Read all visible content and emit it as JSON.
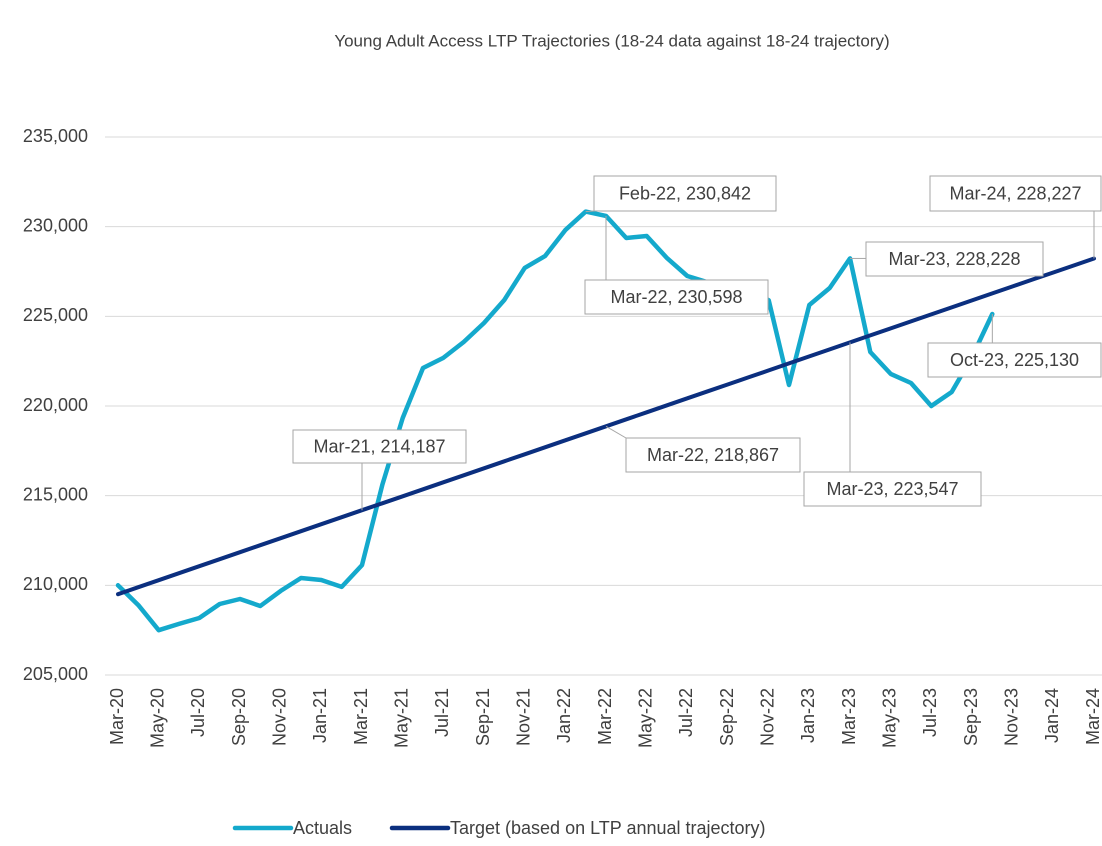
{
  "chart_data": {
    "type": "line",
    "title": "Young Adult Access LTP Trajectories (18-24 data against 18-24 trajectory)",
    "categories": [
      "Mar-20",
      null,
      "May-20",
      null,
      "Jul-20",
      null,
      "Sep-20",
      null,
      "Nov-20",
      null,
      "Jan-21",
      null,
      "Mar-21",
      null,
      "May-21",
      null,
      "Jul-21",
      null,
      "Sep-21",
      null,
      "Nov-21",
      null,
      "Jan-22",
      null,
      "Mar-22",
      null,
      "May-22",
      null,
      "Jul-22",
      null,
      "Sep-22",
      null,
      "Nov-22",
      null,
      "Jan-23",
      null,
      "Mar-23",
      null,
      "May-23",
      null,
      "Jul-23",
      null,
      "Sep-23",
      null,
      "Nov-23",
      null,
      "Jan-24",
      null,
      "Mar-24"
    ],
    "series": [
      {
        "name": "Actuals",
        "color": "#14a9cc",
        "values": [
          210000,
          208900,
          207500,
          207850,
          208180,
          208960,
          209240,
          208850,
          209690,
          210410,
          210300,
          209910,
          211130,
          215600,
          219330,
          222120,
          222680,
          223570,
          224630,
          225910,
          227700,
          228360,
          229810,
          230842,
          230598,
          229370,
          229480,
          228250,
          227250,
          226900,
          226700,
          226500,
          225900,
          221170,
          225630,
          226580,
          228228,
          223010,
          221790,
          221280,
          220000,
          220780,
          222730,
          225130,
          null,
          null,
          null,
          null,
          null
        ],
        "value_labels": [
          null,
          null,
          null,
          null,
          null,
          null,
          null,
          null,
          null,
          null,
          null,
          null,
          null,
          null,
          null,
          null,
          null,
          null,
          null,
          null,
          null,
          null,
          null,
          "Feb-22,  230,842",
          "Mar-22,  230,598",
          null,
          null,
          null,
          null,
          null,
          null,
          null,
          null,
          null,
          null,
          null,
          "Mar-23, 228,228",
          null,
          null,
          null,
          null,
          null,
          null,
          "Oct-23,  225,130",
          null,
          null,
          null,
          null,
          null
        ]
      },
      {
        "name": "Target (based on LTP annual trajectory)",
        "color": "#0b2f7f",
        "values": [
          209507,
          209897,
          210287,
          210677,
          211067,
          211457,
          211847,
          212237,
          212627,
          213017,
          213407,
          213797,
          214187,
          214577,
          214967,
          215357,
          215747,
          216137,
          216527,
          216917,
          217307,
          217697,
          218087,
          218477,
          218867,
          219257,
          219647,
          220037,
          220427,
          220817,
          221207,
          221597,
          221987,
          222377,
          222767,
          223157,
          223547,
          223937,
          224327,
          224717,
          225107,
          225497,
          225887,
          226277,
          226667,
          227057,
          227447,
          227837,
          228227
        ],
        "value_labels": [
          null,
          null,
          null,
          null,
          null,
          null,
          null,
          null,
          null,
          null,
          null,
          null,
          "Mar-21, 214,187",
          null,
          null,
          null,
          null,
          null,
          null,
          null,
          null,
          null,
          null,
          null,
          "Mar-22, 218,867",
          null,
          null,
          null,
          null,
          null,
          null,
          null,
          null,
          null,
          null,
          null,
          "Mar-23, 223,547",
          null,
          null,
          null,
          null,
          null,
          null,
          null,
          null,
          null,
          null,
          null,
          "Mar-24, 228,227"
        ]
      }
    ],
    "ylim": [
      205000,
      235000
    ],
    "yticks": [
      {
        "value": 205000,
        "label": "205,000"
      },
      {
        "value": 210000,
        "label": "210,000"
      },
      {
        "value": 215000,
        "label": "215,000"
      },
      {
        "value": 220000,
        "label": "220,000"
      },
      {
        "value": 225000,
        "label": "225,000"
      },
      {
        "value": 230000,
        "label": "230,000"
      },
      {
        "value": 235000,
        "label": "235,000"
      }
    ],
    "grid": true,
    "legend": "bottom"
  }
}
